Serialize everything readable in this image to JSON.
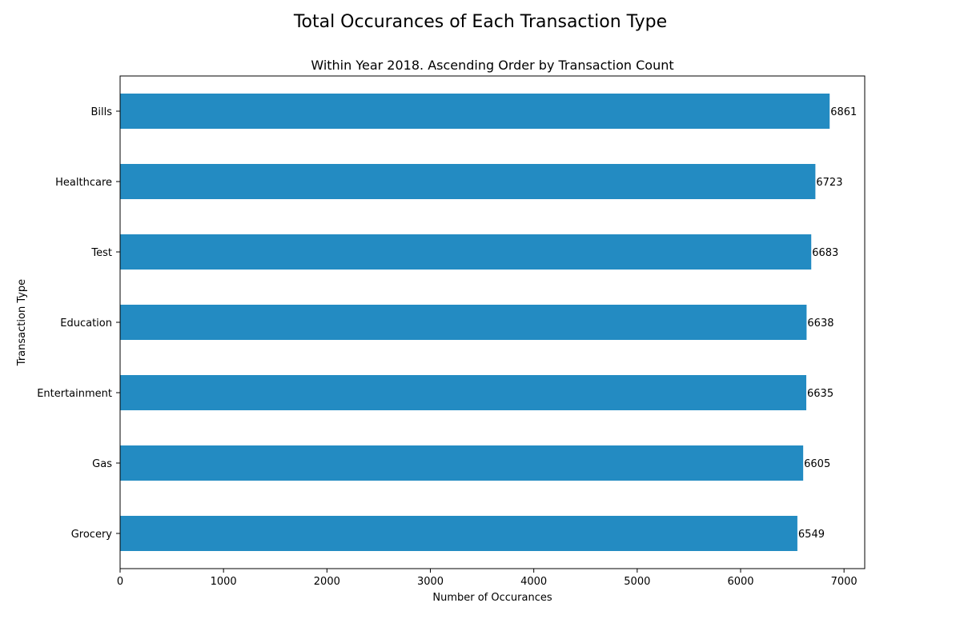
{
  "figure_title": "Total Occurances of Each Transaction Type",
  "chart_data": {
    "type": "bar",
    "orientation": "horizontal",
    "title": "Within Year 2018. Ascending Order by Transaction Count",
    "xlabel": "Number of Occurances",
    "ylabel": "Transaction Type",
    "categories": [
      "Grocery",
      "Gas",
      "Entertainment",
      "Education",
      "Test",
      "Healthcare",
      "Bills"
    ],
    "values": [
      6549,
      6605,
      6635,
      6638,
      6683,
      6723,
      6861
    ],
    "xlim": [
      0,
      7200
    ],
    "xticks": [
      0,
      1000,
      2000,
      3000,
      4000,
      5000,
      6000,
      7000
    ],
    "bar_color": "#238bc2",
    "grid": false,
    "data_labels": true
  }
}
